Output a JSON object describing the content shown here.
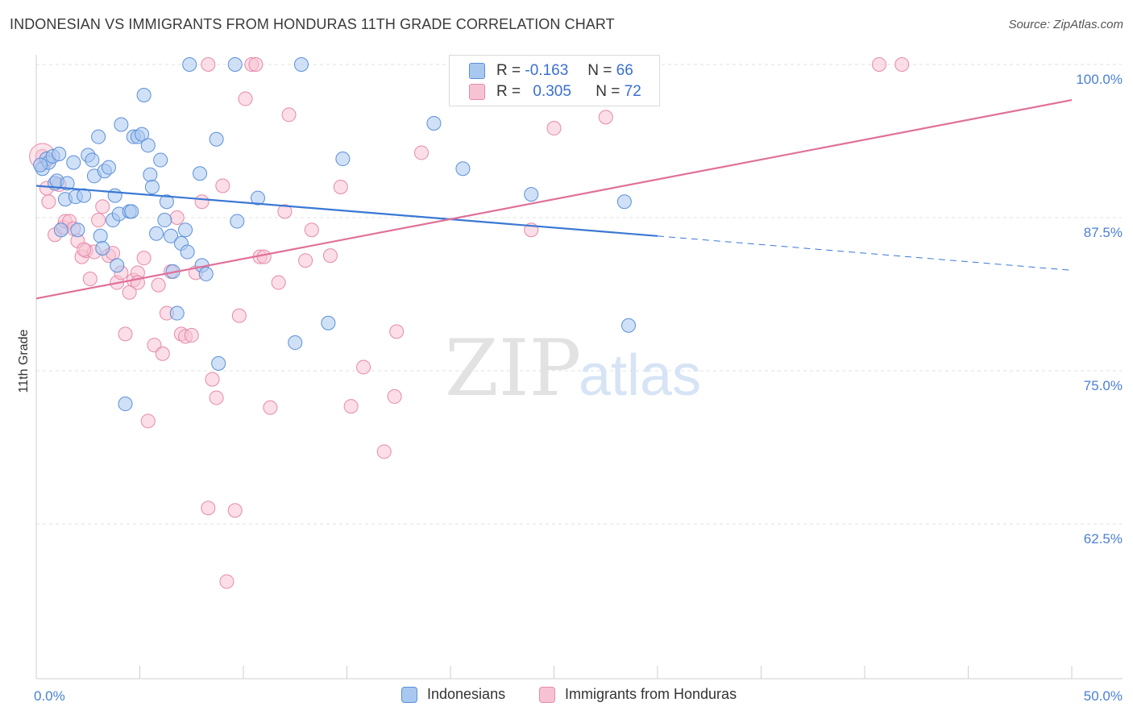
{
  "title": "INDONESIAN VS IMMIGRANTS FROM HONDURAS 11TH GRADE CORRELATION CHART",
  "source": "Source: ZipAtlas.com",
  "watermark": {
    "zip": "ZIP",
    "atlas": "atlas"
  },
  "legend": {
    "r_label": "R =",
    "n_label": "N =",
    "rows": [
      {
        "r": "-0.163",
        "n": "66",
        "fill": "#a9c8f0",
        "stroke": "#5b8fd8"
      },
      {
        "r": "0.305",
        "n": "72",
        "fill": "#f7c3d3",
        "stroke": "#e58aa8"
      }
    ]
  },
  "bottom_legend": [
    "Indonesians",
    "Immigrants from Honduras"
  ],
  "chart_data": {
    "type": "scatter",
    "title": "INDONESIAN VS IMMIGRANTS FROM HONDURAS 11TH GRADE CORRELATION CHART",
    "ylabel": "11th Grade",
    "xlabel": "",
    "xlim": [
      0,
      50
    ],
    "ylim": [
      53,
      101
    ],
    "x_ticks": [
      "0.0%",
      "50.0%"
    ],
    "y_ticks": [
      {
        "value": 100.0,
        "label": "100.0%"
      },
      {
        "value": 87.5,
        "label": "87.5%"
      },
      {
        "value": 75.0,
        "label": "75.0%"
      },
      {
        "value": 62.5,
        "label": "62.5%"
      }
    ],
    "grid": true,
    "series": [
      {
        "name": "Indonesians",
        "color": "#5b8fd8",
        "fill": "#a9c8f0",
        "R": -0.163,
        "N": 66,
        "trend": {
          "x0": 0,
          "y0": 90.1,
          "x1": 30,
          "y1": 86.0,
          "dash_x1": 50,
          "dash_y1": 83.2
        },
        "points": [
          [
            0.3,
            91.5
          ],
          [
            0.5,
            92.3
          ],
          [
            0.6,
            92.0
          ],
          [
            0.8,
            92.5
          ],
          [
            0.9,
            90.3
          ],
          [
            1.0,
            90.5
          ],
          [
            1.1,
            92.7
          ],
          [
            1.2,
            86.5
          ],
          [
            1.4,
            89.0
          ],
          [
            1.5,
            90.3
          ],
          [
            1.8,
            92.0
          ],
          [
            1.9,
            89.2
          ],
          [
            2.0,
            86.5
          ],
          [
            2.3,
            89.3
          ],
          [
            2.5,
            92.6
          ],
          [
            2.7,
            92.2
          ],
          [
            2.8,
            90.9
          ],
          [
            3.0,
            94.1
          ],
          [
            3.1,
            86.0
          ],
          [
            3.2,
            85.0
          ],
          [
            3.3,
            91.3
          ],
          [
            3.5,
            91.6
          ],
          [
            3.7,
            87.3
          ],
          [
            3.8,
            89.3
          ],
          [
            3.9,
            83.6
          ],
          [
            4.0,
            87.8
          ],
          [
            4.1,
            95.1
          ],
          [
            4.3,
            72.3
          ],
          [
            4.5,
            88.0
          ],
          [
            4.6,
            88.0
          ],
          [
            4.7,
            94.1
          ],
          [
            4.9,
            94.1
          ],
          [
            5.1,
            94.3
          ],
          [
            5.2,
            97.5
          ],
          [
            5.4,
            93.4
          ],
          [
            5.5,
            91.0
          ],
          [
            5.6,
            90.0
          ],
          [
            5.8,
            86.2
          ],
          [
            6.0,
            92.2
          ],
          [
            6.2,
            87.3
          ],
          [
            6.3,
            88.8
          ],
          [
            6.5,
            86.0
          ],
          [
            6.6,
            83.1
          ],
          [
            6.8,
            79.7
          ],
          [
            7.0,
            85.4
          ],
          [
            7.2,
            86.5
          ],
          [
            7.3,
            84.7
          ],
          [
            7.4,
            100.0
          ],
          [
            7.9,
            91.1
          ],
          [
            8.0,
            83.6
          ],
          [
            8.2,
            82.9
          ],
          [
            8.7,
            93.9
          ],
          [
            8.8,
            75.6
          ],
          [
            9.6,
            100.0
          ],
          [
            9.7,
            87.2
          ],
          [
            10.7,
            89.1
          ],
          [
            12.5,
            77.3
          ],
          [
            12.8,
            100.0
          ],
          [
            14.1,
            78.9
          ],
          [
            14.8,
            92.3
          ],
          [
            19.2,
            95.2
          ],
          [
            20.6,
            91.5
          ],
          [
            23.9,
            89.4
          ],
          [
            28.4,
            88.8
          ],
          [
            28.6,
            78.7
          ],
          [
            0.2,
            91.8
          ]
        ]
      },
      {
        "name": "Immigrants from Honduras",
        "color": "#e58aa8",
        "fill": "#f7c3d3",
        "R": 0.305,
        "N": 72,
        "trend": {
          "x0": 0,
          "y0": 80.9,
          "x1": 50,
          "y1": 97.1
        },
        "points": [
          [
            0.3,
            92.5
          ],
          [
            0.5,
            89.9
          ],
          [
            0.6,
            88.8
          ],
          [
            0.9,
            86.1
          ],
          [
            1.1,
            90.2
          ],
          [
            1.3,
            86.7
          ],
          [
            1.4,
            87.2
          ],
          [
            1.6,
            87.2
          ],
          [
            1.8,
            86.6
          ],
          [
            2.0,
            85.6
          ],
          [
            2.2,
            84.3
          ],
          [
            2.4,
            84.8
          ],
          [
            2.6,
            82.5
          ],
          [
            2.8,
            84.7
          ],
          [
            3.0,
            87.3
          ],
          [
            3.2,
            88.4
          ],
          [
            3.5,
            84.4
          ],
          [
            3.7,
            84.6
          ],
          [
            3.9,
            82.2
          ],
          [
            4.1,
            83.0
          ],
          [
            4.3,
            78.0
          ],
          [
            4.5,
            81.4
          ],
          [
            4.7,
            82.4
          ],
          [
            4.9,
            83.0
          ],
          [
            5.2,
            84.2
          ],
          [
            5.4,
            70.9
          ],
          [
            5.7,
            77.1
          ],
          [
            5.9,
            82.0
          ],
          [
            6.1,
            76.4
          ],
          [
            6.3,
            79.7
          ],
          [
            6.5,
            83.1
          ],
          [
            6.8,
            87.5
          ],
          [
            7.0,
            78.0
          ],
          [
            7.2,
            77.8
          ],
          [
            7.5,
            77.9
          ],
          [
            7.7,
            83.0
          ],
          [
            8.0,
            88.8
          ],
          [
            8.3,
            63.8
          ],
          [
            8.5,
            74.3
          ],
          [
            8.7,
            72.8
          ],
          [
            9.0,
            90.1
          ],
          [
            9.2,
            57.8
          ],
          [
            9.6,
            63.6
          ],
          [
            9.8,
            79.5
          ],
          [
            10.1,
            97.2
          ],
          [
            10.4,
            100.0
          ],
          [
            10.8,
            84.3
          ],
          [
            11.0,
            84.3
          ],
          [
            11.3,
            72.0
          ],
          [
            11.7,
            82.2
          ],
          [
            12.0,
            88.0
          ],
          [
            12.2,
            95.9
          ],
          [
            13.0,
            84.0
          ],
          [
            13.3,
            86.5
          ],
          [
            14.2,
            84.4
          ],
          [
            14.7,
            90.0
          ],
          [
            15.2,
            72.1
          ],
          [
            15.8,
            75.3
          ],
          [
            16.8,
            68.4
          ],
          [
            17.3,
            72.9
          ],
          [
            17.4,
            78.2
          ],
          [
            18.6,
            92.8
          ],
          [
            23.9,
            86.5
          ],
          [
            25.0,
            94.8
          ],
          [
            27.5,
            95.7
          ],
          [
            28.0,
            100.0
          ],
          [
            8.3,
            100.0
          ],
          [
            10.6,
            100.0
          ],
          [
            40.7,
            100.0
          ],
          [
            41.8,
            100.0
          ],
          [
            4.9,
            82.2
          ],
          [
            2.3,
            84.9
          ]
        ]
      }
    ]
  }
}
